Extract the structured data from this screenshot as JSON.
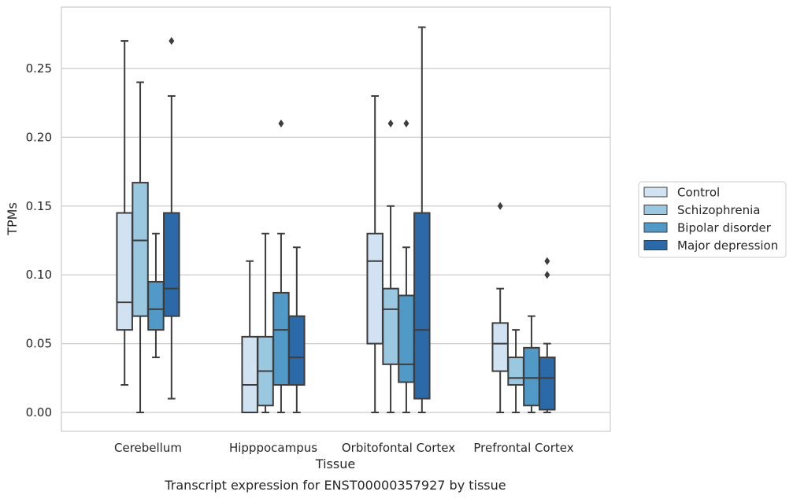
{
  "caption": "Transcript expression for ENST00000357927 by tissue",
  "chart_data": {
    "type": "boxplot",
    "xlabel": "Tissue",
    "ylabel": "TPMs",
    "ylim": [
      -0.014,
      0.295
    ],
    "y_ticks": [
      0.0,
      0.05,
      0.1,
      0.15,
      0.2,
      0.25
    ],
    "y_tick_labels": [
      "0.00",
      "0.05",
      "0.10",
      "0.15",
      "0.20",
      "0.25"
    ],
    "grid": "horizontal",
    "legend_position": "right",
    "categories": [
      "Cerebellum",
      "Hipppocampus",
      "Orbitofontal Cortex",
      "Prefrontal Cortex"
    ],
    "series": [
      {
        "name": "Control",
        "color": "#d1e2f2",
        "boxes": [
          {
            "whisker_low": 0.02,
            "q1": 0.06,
            "median": 0.08,
            "q3": 0.145,
            "whisker_high": 0.27,
            "outliers": []
          },
          {
            "whisker_low": 0.0,
            "q1": 0.0,
            "median": 0.02,
            "q3": 0.055,
            "whisker_high": 0.11,
            "outliers": []
          },
          {
            "whisker_low": 0.0,
            "q1": 0.05,
            "median": 0.11,
            "q3": 0.13,
            "whisker_high": 0.23,
            "outliers": []
          },
          {
            "whisker_low": 0.0,
            "q1": 0.03,
            "median": 0.05,
            "q3": 0.065,
            "whisker_high": 0.09,
            "outliers": [
              0.15
            ]
          }
        ]
      },
      {
        "name": "Schizophrenia",
        "color": "#9ac8e0",
        "boxes": [
          {
            "whisker_low": 0.0,
            "q1": 0.07,
            "median": 0.125,
            "q3": 0.167,
            "whisker_high": 0.24,
            "outliers": []
          },
          {
            "whisker_low": 0.0,
            "q1": 0.005,
            "median": 0.03,
            "q3": 0.055,
            "whisker_high": 0.13,
            "outliers": []
          },
          {
            "whisker_low": 0.0,
            "q1": 0.035,
            "median": 0.075,
            "q3": 0.09,
            "whisker_high": 0.15,
            "outliers": [
              0.21
            ]
          },
          {
            "whisker_low": 0.0,
            "q1": 0.02,
            "median": 0.025,
            "q3": 0.04,
            "whisker_high": 0.06,
            "outliers": []
          }
        ]
      },
      {
        "name": "Bipolar disorder",
        "color": "#5199c6",
        "boxes": [
          {
            "whisker_low": 0.04,
            "q1": 0.06,
            "median": 0.075,
            "q3": 0.095,
            "whisker_high": 0.13,
            "outliers": []
          },
          {
            "whisker_low": 0.0,
            "q1": 0.02,
            "median": 0.06,
            "q3": 0.087,
            "whisker_high": 0.13,
            "outliers": [
              0.21
            ]
          },
          {
            "whisker_low": 0.0,
            "q1": 0.022,
            "median": 0.035,
            "q3": 0.085,
            "whisker_high": 0.12,
            "outliers": [
              0.21
            ]
          },
          {
            "whisker_low": 0.0,
            "q1": 0.005,
            "median": 0.025,
            "q3": 0.047,
            "whisker_high": 0.07,
            "outliers": []
          }
        ]
      },
      {
        "name": "Major depression",
        "color": "#2b69a8",
        "boxes": [
          {
            "whisker_low": 0.01,
            "q1": 0.07,
            "median": 0.09,
            "q3": 0.145,
            "whisker_high": 0.23,
            "outliers": [
              0.27
            ]
          },
          {
            "whisker_low": 0.0,
            "q1": 0.02,
            "median": 0.04,
            "q3": 0.07,
            "whisker_high": 0.12,
            "outliers": []
          },
          {
            "whisker_low": 0.0,
            "q1": 0.01,
            "median": 0.06,
            "q3": 0.145,
            "whisker_high": 0.28,
            "outliers": []
          },
          {
            "whisker_low": 0.0,
            "q1": 0.002,
            "median": 0.025,
            "q3": 0.04,
            "whisker_high": 0.05,
            "outliers": [
              0.1,
              0.11
            ]
          }
        ]
      }
    ]
  }
}
